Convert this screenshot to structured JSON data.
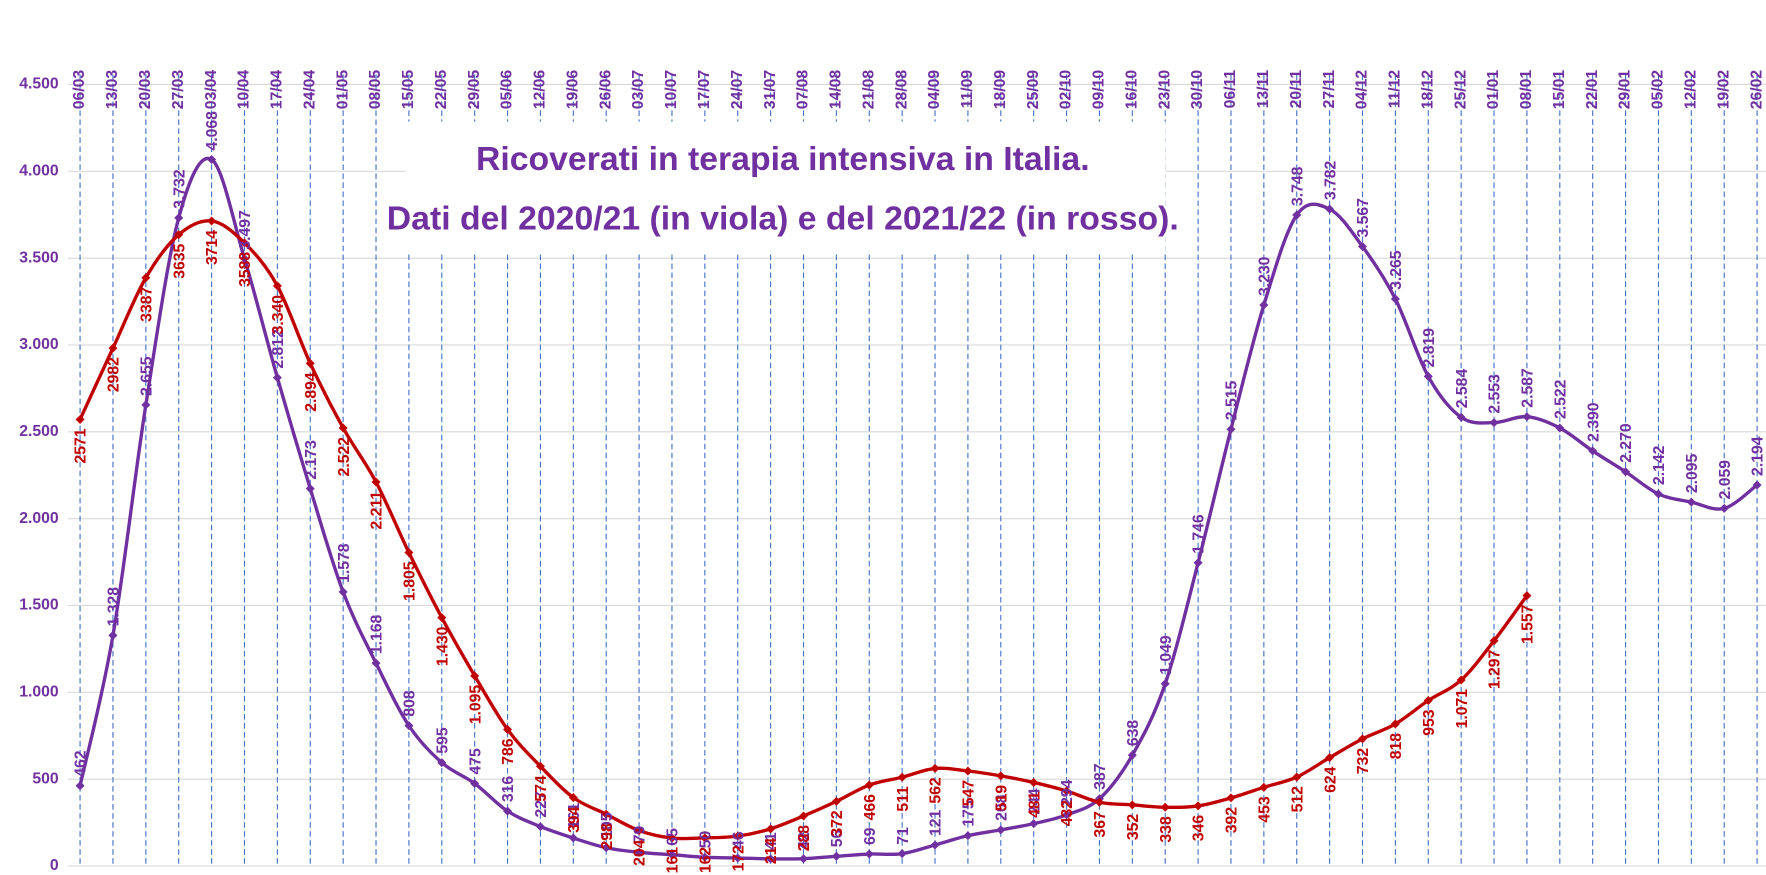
{
  "chart_data": {
    "type": "line",
    "title": "Ricoverati in terapia intensiva in Italia.",
    "subtitle": "Dati del 2020/21 (in viola)  e del 2021/22 (in rosso).",
    "categories": [
      "06/03",
      "13/03",
      "20/03",
      "27/03",
      "03/04",
      "10/04",
      "17/04",
      "24/04",
      "01/05",
      "08/05",
      "15/05",
      "22/05",
      "29/05",
      "05/06",
      "12/06",
      "19/06",
      "26/06",
      "03/07",
      "10/07",
      "17/07",
      "24/07",
      "31/07",
      "07/08",
      "14/08",
      "21/08",
      "28/08",
      "04/09",
      "11/09",
      "18/09",
      "25/09",
      "02/10",
      "09/10",
      "16/10",
      "23/10",
      "30/10",
      "06/11",
      "13/11",
      "20/11",
      "27/11",
      "04/12",
      "11/12",
      "18/12",
      "25/12",
      "01/01",
      "08/01",
      "15/01",
      "22/01",
      "29/01",
      "05/02",
      "12/02",
      "19/02",
      "26/02"
    ],
    "series": [
      {
        "name": "2020/21",
        "color": "#7030a0",
        "values": [
          462,
          1328,
          2655,
          3732,
          4068,
          3497,
          2812,
          2173,
          1578,
          1168,
          808,
          595,
          475,
          316,
          227,
          161,
          105,
          79,
          65,
          50,
          46,
          41,
          42,
          56,
          69,
          71,
          121,
          175,
          208,
          244,
          294,
          387,
          638,
          1049,
          1746,
          2515,
          3230,
          3748,
          3782,
          3567,
          3265,
          2819,
          2584,
          2553,
          2587,
          2522,
          2390,
          2270,
          2142,
          2095,
          2059,
          2194
        ],
        "value_labels": [
          "462",
          "1.328",
          "2.655",
          "3.732",
          "4.068",
          "3.497",
          "2.812",
          "2.173",
          "1.578",
          "1.168",
          "808",
          "595",
          "475",
          "316",
          "227",
          "161",
          "105",
          "79",
          "65",
          "50",
          "46",
          "41",
          "42",
          "56",
          "69",
          "71",
          "121",
          "175",
          "208",
          "244",
          "294",
          "387",
          "638",
          "1.049",
          "1.746",
          "2.515",
          "3.230",
          "3.748",
          "3.782",
          "3.567",
          "3.265",
          "2.819",
          "2.584",
          "2.553",
          "2.587",
          "2.522",
          "2.390",
          "2.270",
          "2.142",
          "2.095",
          "2.059",
          "2.194"
        ]
      },
      {
        "name": "2021/22",
        "color": "#c00000",
        "values": [
          2571,
          2982,
          3387,
          3635,
          3714,
          3588,
          3340,
          2894,
          2522,
          2211,
          1805,
          1430,
          1095,
          786,
          574,
          394,
          298,
          204,
          161,
          162,
          172,
          214,
          288,
          372,
          466,
          511,
          562,
          547,
          519,
          481,
          432,
          367,
          352,
          338,
          346,
          392,
          453,
          512,
          624,
          732,
          818,
          953,
          1071,
          1297,
          1557,
          null,
          null,
          null,
          null,
          null,
          null,
          null
        ],
        "value_labels": [
          "2571",
          "2982",
          "3387",
          "3635",
          "3714",
          "3588",
          "3.340",
          "2.894",
          "2.522",
          "2.211",
          "1.805",
          "1.430",
          "1.095",
          "786",
          "574",
          "394",
          "298",
          "204",
          "161",
          "162",
          "172",
          "214",
          "288",
          "372",
          "466",
          "511",
          "562",
          "547",
          "519",
          "481",
          "432",
          "367",
          "352",
          "338",
          "346",
          "392",
          "453",
          "512",
          "624",
          "732",
          "818",
          "953",
          "1.071",
          "1.297",
          "1.557",
          null,
          null,
          null,
          null,
          null,
          null,
          null
        ]
      }
    ],
    "ylim": [
      0,
      4500
    ],
    "yticks": [
      0,
      500,
      {
        "value": 1000,
        "label": "1.000"
      },
      {
        "value": 1500,
        "label": "1.500"
      },
      {
        "value": 2000,
        "label": "2.000"
      },
      {
        "value": 2500,
        "label": "2.500"
      },
      {
        "value": 3000,
        "label": "3.000"
      },
      {
        "value": 3500,
        "label": "3.500"
      },
      {
        "value": 4000,
        "label": "4.000"
      },
      {
        "value": 4500,
        "label": "4.500"
      }
    ],
    "grid": true
  }
}
